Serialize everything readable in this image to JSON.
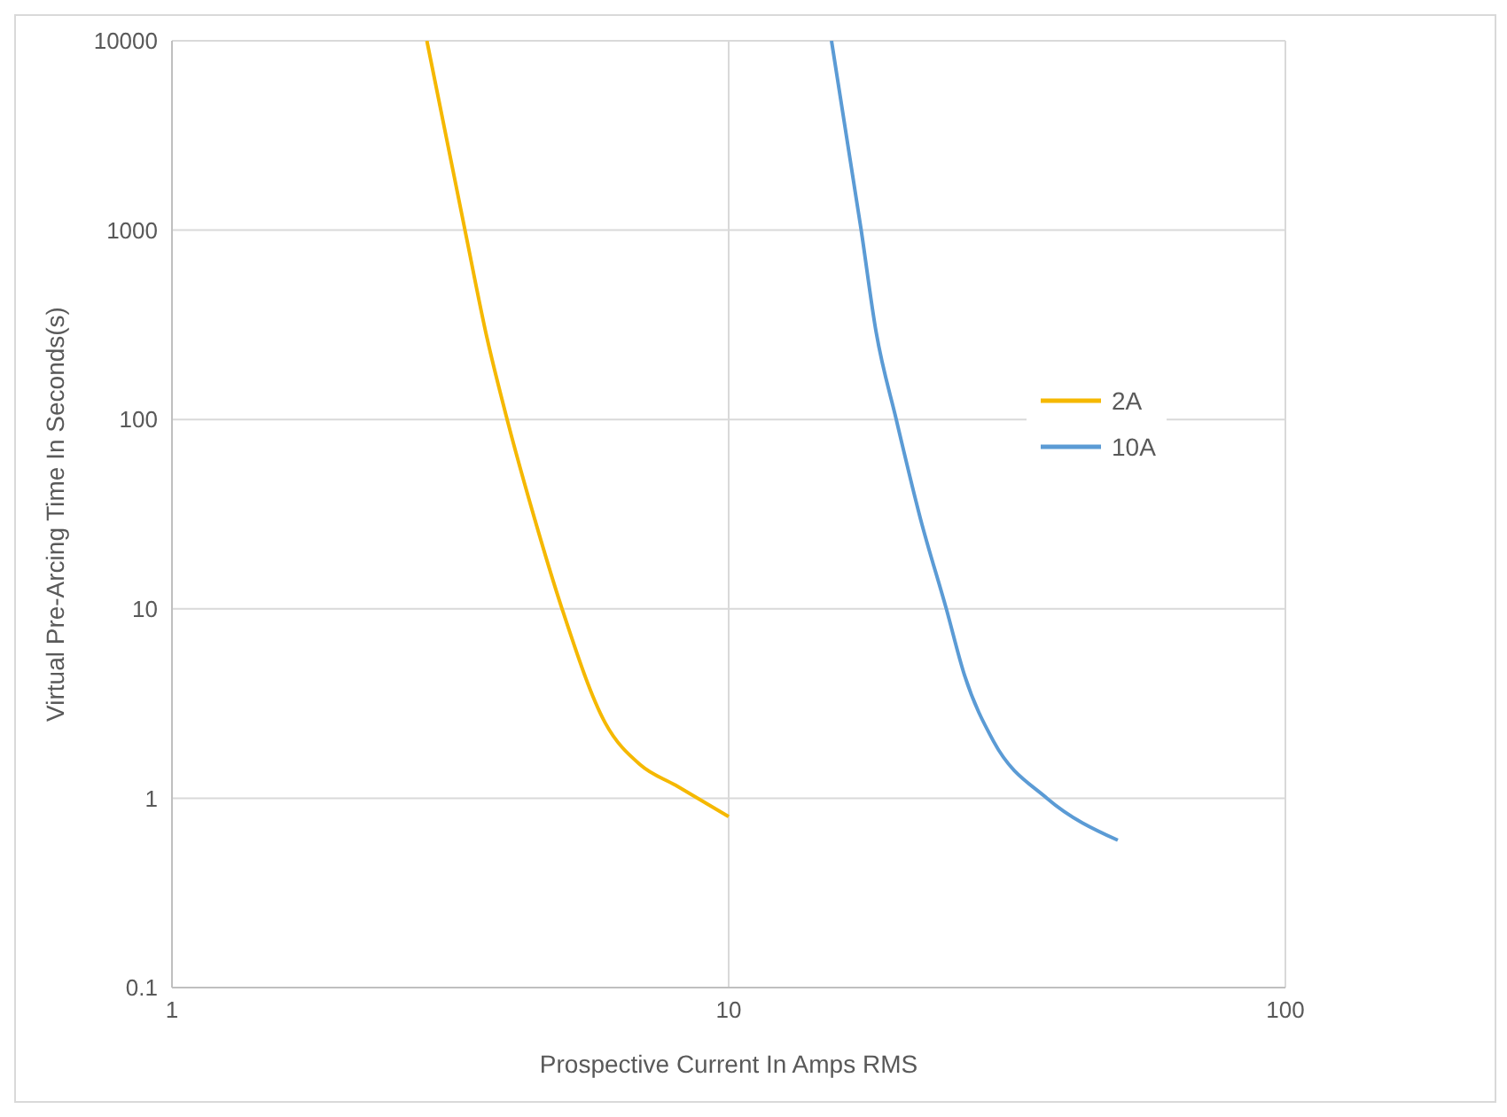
{
  "chart_data": {
    "type": "line",
    "xlabel": "Prospective Current In Amps RMS",
    "ylabel": "Virtual Pre-Arcing Time In Seconds(s)",
    "log": "xy",
    "xlim": [
      1,
      100
    ],
    "xticks": [
      1,
      10,
      100
    ],
    "ylim": [
      0.1,
      10000
    ],
    "yticks": [
      0.1,
      1,
      10,
      100,
      1000,
      10000
    ],
    "grid": true,
    "legend": "right",
    "marker": "none",
    "line_style": "solid",
    "series": [
      {
        "name": "2A",
        "color": "#f5b800",
        "x": [
          2.87,
          3.36,
          3.68,
          4.0,
          4.48,
          5.02,
          6.0,
          6.94,
          8.03,
          10
        ],
        "values": [
          10000,
          1000,
          270,
          100,
          30,
          10,
          2.5,
          1.5,
          1.17,
          0.8
        ]
      },
      {
        "name": "10A",
        "color": "#5b9bd5",
        "x": [
          15.3,
          17.3,
          18.4,
          20.0,
          22.1,
          24.6,
          26.5,
          29.9,
          37.3,
          50
        ],
        "values": [
          10000,
          1000,
          290,
          100,
          30,
          10,
          4.5,
          2.0,
          1.0,
          0.6
        ]
      }
    ]
  }
}
